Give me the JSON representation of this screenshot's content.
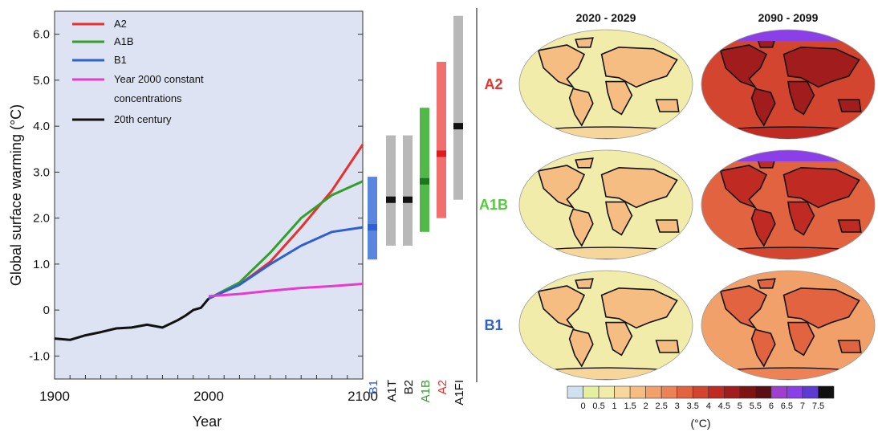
{
  "chart_data": [
    {
      "type": "line",
      "xlabel": "Year",
      "ylabel": "Global surface warming (°C)",
      "xlim": [
        1900,
        2100
      ],
      "ylim": [
        -1.5,
        6.5
      ],
      "xticks": [
        "1900",
        "2000",
        "2100"
      ],
      "yticks": [
        "-1.0",
        "0",
        "1.0",
        "2.0",
        "3.0",
        "4.0",
        "5.0",
        "6.0"
      ],
      "grid": false,
      "legend_position": "top-left",
      "series": [
        {
          "name": "A2",
          "color": "#e8312d",
          "x": [
            2000,
            2020,
            2040,
            2060,
            2080,
            2100
          ],
          "y": [
            0.25,
            0.55,
            1.05,
            1.8,
            2.6,
            3.6
          ]
        },
        {
          "name": "A1B",
          "color": "#33a02c",
          "x": [
            2000,
            2020,
            2040,
            2060,
            2080,
            2100
          ],
          "y": [
            0.25,
            0.6,
            1.25,
            2.0,
            2.5,
            2.8
          ]
        },
        {
          "name": "B1",
          "color": "#2f5fd0",
          "x": [
            2000,
            2020,
            2040,
            2060,
            2080,
            2100
          ],
          "y": [
            0.25,
            0.55,
            1.0,
            1.4,
            1.7,
            1.8
          ]
        },
        {
          "name": "Year 2000 constant concentrations",
          "color": "#e83ad0",
          "x": [
            2000,
            2020,
            2040,
            2060,
            2080,
            2100
          ],
          "y": [
            0.3,
            0.35,
            0.42,
            0.48,
            0.52,
            0.57
          ]
        },
        {
          "name": "20th century",
          "color": "#111111",
          "x": [
            1900,
            1910,
            1920,
            1930,
            1940,
            1950,
            1960,
            1970,
            1980,
            1985,
            1990,
            1995,
            2000
          ],
          "y": [
            -0.62,
            -0.65,
            -0.55,
            -0.48,
            -0.4,
            -0.38,
            -0.32,
            -0.38,
            -0.22,
            -0.12,
            0.0,
            0.05,
            0.25
          ]
        }
      ]
    },
    {
      "type": "bar",
      "categories": [
        "B1",
        "A1T",
        "B2",
        "A1B",
        "A2",
        "A1FI"
      ],
      "category_colors": [
        "#2f5fd0",
        "#111111",
        "#111111",
        "#33a02c",
        "#e8312d",
        "#111111"
      ],
      "bar_colors": [
        "#5b86e0",
        "#b8b8b8",
        "#b8b8b8",
        "#52b84a",
        "#f07070",
        "#b8b8b8"
      ],
      "marker_colors": [
        "#2f5fd0",
        "#111111",
        "#111111",
        "#1b7a18",
        "#d81e1e",
        "#111111"
      ],
      "low": [
        1.1,
        1.4,
        1.4,
        1.7,
        2.0,
        2.4
      ],
      "high": [
        2.9,
        3.8,
        3.8,
        4.4,
        5.4,
        6.4
      ],
      "best_estimate": [
        1.8,
        2.4,
        2.4,
        2.8,
        3.4,
        4.0
      ],
      "ylim": [
        -1.5,
        6.5
      ]
    },
    {
      "type": "heatmap",
      "columns": [
        "2020 - 2029",
        "2090 - 2099"
      ],
      "rows": [
        "A2",
        "A1B",
        "B1"
      ],
      "row_colors": [
        "#e8312d",
        "#52cc3a",
        "#2f5fd0"
      ],
      "mean_warming": [
        [
          0.9,
          3.8
        ],
        [
          0.8,
          3.4
        ],
        [
          0.8,
          2.3
        ]
      ],
      "colorbar": {
        "ticks": [
          "0",
          "0.5",
          "1",
          "1.5",
          "2",
          "2.5",
          "3",
          "3.5",
          "4",
          "4.5",
          "5",
          "5.5",
          "6",
          "6.5",
          "7",
          "7.5"
        ],
        "unit": "(°C)",
        "colors": [
          "#cfe0ef",
          "#e4efa0",
          "#f1ecaa",
          "#f6d69a",
          "#f5bd82",
          "#f2a06a",
          "#ec8256",
          "#e2633f",
          "#d3452e",
          "#bf2b22",
          "#a11c1c",
          "#7d1414",
          "#5a0f14",
          "#9e3fd0",
          "#8b3fe6",
          "#5d3bd0",
          "#111111"
        ]
      }
    }
  ]
}
